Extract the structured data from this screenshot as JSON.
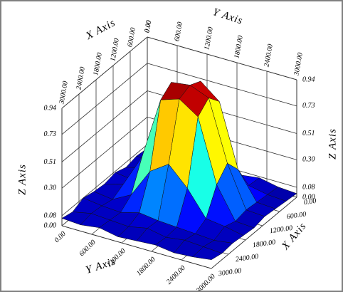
{
  "chart_data": {
    "type": "surface3d",
    "x_label": "X Axis",
    "y_label": "Y Axis",
    "z_label": "Z Axis",
    "x": [
      0,
      375,
      750,
      1125,
      1500,
      1875,
      2250,
      2625,
      3000
    ],
    "y": [
      0,
      375,
      750,
      1125,
      1500,
      1875,
      2250,
      2625,
      3000
    ],
    "z": [
      [
        0.05,
        0.07,
        0.04,
        0.08,
        0.06,
        0.05,
        0.07,
        0.04,
        0.03
      ],
      [
        0.06,
        0.04,
        0.09,
        0.25,
        0.35,
        0.22,
        0.08,
        0.05,
        0.04
      ],
      [
        0.04,
        0.08,
        0.3,
        0.8,
        0.9,
        0.78,
        0.28,
        0.06,
        0.05
      ],
      [
        0.07,
        0.05,
        0.45,
        0.92,
        0.94,
        0.88,
        0.4,
        0.07,
        0.06
      ],
      [
        0.05,
        0.09,
        0.35,
        0.85,
        0.9,
        0.8,
        0.3,
        0.05,
        0.04
      ],
      [
        0.06,
        0.04,
        0.12,
        0.35,
        0.45,
        0.3,
        0.1,
        0.08,
        0.05
      ],
      [
        0.08,
        0.06,
        0.05,
        0.09,
        0.07,
        0.06,
        0.05,
        0.04,
        0.06
      ],
      [
        0.04,
        0.07,
        0.06,
        0.05,
        0.08,
        0.05,
        0.07,
        0.06,
        0.05
      ],
      [
        0.06,
        0.05,
        0.07,
        0.04,
        0.05,
        0.06,
        0.04,
        0.05,
        0.07
      ]
    ],
    "xlim": [
      0,
      3000
    ],
    "ylim": [
      0,
      3000
    ],
    "zlim": [
      0,
      0.94
    ],
    "xticks": [
      {
        "value": 0,
        "label": "0.00"
      },
      {
        "value": 600,
        "label": "600.00"
      },
      {
        "value": 1200,
        "label": "1200.00"
      },
      {
        "value": 1800,
        "label": "1800.00"
      },
      {
        "value": 2400,
        "label": "2400.00"
      },
      {
        "value": 3000,
        "label": "3000.00"
      }
    ],
    "yticks": [
      {
        "value": 0,
        "label": "0.00"
      },
      {
        "value": 600,
        "label": "600.00"
      },
      {
        "value": 1200,
        "label": "1200.00"
      },
      {
        "value": 1800,
        "label": "1800.00"
      },
      {
        "value": 2400,
        "label": "2400.00"
      },
      {
        "value": 3000,
        "label": "3000.00"
      }
    ],
    "zticks": [
      {
        "value": 0,
        "label": "0.00"
      },
      {
        "value": 0.08,
        "label": "0.08"
      },
      {
        "value": 0.3,
        "label": "0.30"
      },
      {
        "value": 0.51,
        "label": "0.51"
      },
      {
        "value": 0.73,
        "label": "0.73"
      },
      {
        "value": 0.94,
        "label": "0.94"
      }
    ],
    "grid": true
  }
}
